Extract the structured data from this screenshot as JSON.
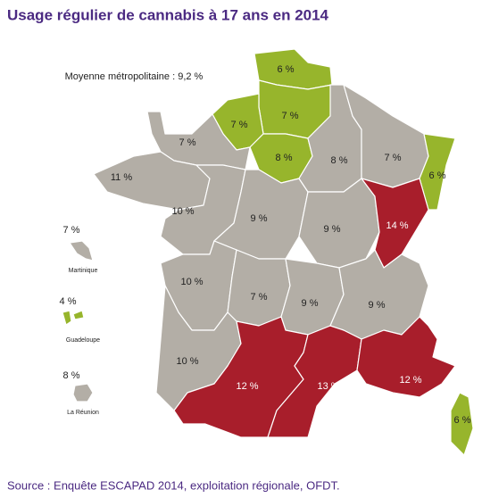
{
  "title": "Usage régulier de cannabis à 17 ans en 2014",
  "note": "Moyenne métropolitaine : 9,2 %",
  "source": "Source : Enquête ESCAPAD 2014, exploitation régionale, OFDT.",
  "regions": [
    {
      "label": "6 %",
      "color": "#97b52c"
    },
    {
      "label": "7 %",
      "color": "#97b52c"
    },
    {
      "label": "7 %",
      "color": "#97b52c"
    },
    {
      "label": "8 %",
      "color": "#97b52c"
    },
    {
      "label": "7 %",
      "color": "#b3aea6"
    },
    {
      "label": "11 %",
      "color": "#b3aea6"
    },
    {
      "label": "10 %",
      "color": "#b3aea6"
    },
    {
      "label": "9 %",
      "color": "#b3aea6"
    },
    {
      "label": "8 %",
      "color": "#b3aea6"
    },
    {
      "label": "7 %",
      "color": "#b3aea6"
    },
    {
      "label": "6 %",
      "color": "#97b52c"
    },
    {
      "label": "9 %",
      "color": "#b3aea6"
    },
    {
      "label": "14 %",
      "color": "#a81e2b"
    },
    {
      "label": "10 %",
      "color": "#b3aea6"
    },
    {
      "label": "7 %",
      "color": "#b3aea6"
    },
    {
      "label": "9 %",
      "color": "#b3aea6"
    },
    {
      "label": "9 %",
      "color": "#b3aea6"
    },
    {
      "label": "10 %",
      "color": "#b3aea6"
    },
    {
      "label": "12 %",
      "color": "#a81e2b"
    },
    {
      "label": "13 %",
      "color": "#a81e2b"
    },
    {
      "label": "12 %",
      "color": "#a81e2b"
    },
    {
      "label": "6 %",
      "color": "#97b52c"
    }
  ],
  "overseas": [
    {
      "label": "7 %",
      "name": "Martinique",
      "color": "#b3aea6"
    },
    {
      "label": "4 %",
      "name": "Guadeloupe",
      "color": "#97b52c"
    },
    {
      "label": "8 %",
      "name": "La Réunion",
      "color": "#b3aea6"
    }
  ]
}
